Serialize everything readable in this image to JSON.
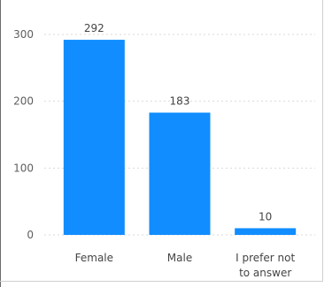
{
  "chart_data": {
    "type": "bar",
    "categories": [
      "Female",
      "Male",
      "I prefer not to answer"
    ],
    "category_label_lines": [
      [
        "Female"
      ],
      [
        "Male"
      ],
      [
        "I prefer not",
        "to answer"
      ]
    ],
    "values": [
      292,
      183,
      10
    ],
    "data_labels": [
      "292",
      "183",
      "10"
    ],
    "ylim": [
      0,
      300
    ],
    "yticks": [
      0,
      100,
      200,
      300
    ],
    "grid": true,
    "title": "",
    "xlabel": "",
    "ylabel": "",
    "bar_color": "#118DFF",
    "grid_color": "#d9d9d9"
  }
}
